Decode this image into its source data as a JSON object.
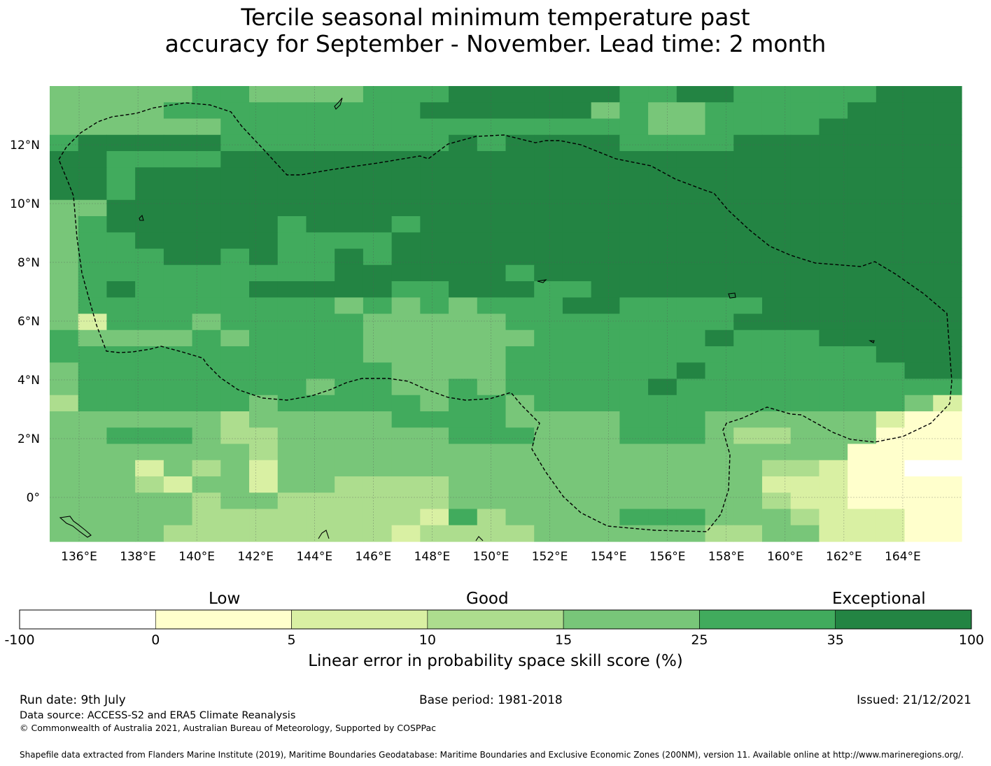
{
  "title": {
    "line1": "Tercile seasonal minimum temperature past",
    "line2": "accuracy for September - November. Lead time: 2 month"
  },
  "map": {
    "lon_range": [
      135,
      166
    ],
    "lat_range": [
      -1.5,
      14
    ],
    "lon_ticks": [
      "136°E",
      "138°E",
      "140°E",
      "142°E",
      "144°E",
      "146°E",
      "148°E",
      "150°E",
      "152°E",
      "154°E",
      "156°E",
      "158°E",
      "160°E",
      "162°E",
      "164°E"
    ],
    "lat_ticks": [
      "12°N",
      "10°N",
      "8°N",
      "6°N",
      "4°N",
      "2°N",
      "0°"
    ],
    "skill_grid_rows_north_to_south": [
      "44444554444555666666556655555666",
      "44445555555556666664544555556666",
      "44444455555555555555544555566666",
      "56666655555555656666555566666666",
      "66555566666666666666666666666666",
      "66566666666666666666666666666666",
      "66566666666666666666666666666666",
      "44666666666666666666666666666666",
      "45666666566656666666666666666666",
      "45566666555566666666666666666666",
      "45556656556566666666666666666666",
      "45555555556666665666666666666666",
      "45655556666655666556666666666666",
      "45555555554545455566555556666666",
      "42555455555444445555555566666666",
      "54444545555444444555555655566666",
      "55555555555444445555555555555666",
      "45555555555544445555556555555566",
      "45555555545544545555565555555555",
      "35555554555554554555555555555542",
      "44444434444455554444555444444211",
      "44555433444444555444555433444111",
      "44444443444444444444444444441111",
      "44424342444444444444444443321100",
      "44432442443333444444444442221111",
      "44444344333333444444444443221111",
      "44444333333332534444555444322211",
      "44443333333323333444444334422211"
    ],
    "legend_key": {
      "0": "-100 to 0",
      "1": "0 to 5",
      "2": "5 to 10",
      "3": "10 to 15",
      "4": "15 to 25",
      "5": "25 to 35",
      "6": "35 to 100"
    }
  },
  "colorbar": {
    "category_labels": [
      "Low",
      "Good",
      "Exceptional"
    ],
    "ticks": [
      "-100",
      "0",
      "5",
      "10",
      "15",
      "25",
      "35",
      "100"
    ],
    "colors": [
      "#ffffff",
      "#ffffcc",
      "#d9f0a3",
      "#addd8e",
      "#78c679",
      "#41ab5d",
      "#238443"
    ],
    "label": "Linear error in probability space skill score (%)"
  },
  "footer": {
    "run_date": "Run date: 9th July",
    "base_period": "Base period: 1981-2018",
    "issued": "Issued: 21/12/2021",
    "data_source": "Data source: ACCESS-S2 and ERA5 Climate Reanalysis",
    "copyright": "© Commonwealth of Australia 2021, Australian Bureau of Meteorology, Supported by COSPPac",
    "shapefile": "Shapefile data extracted from Flanders Marine Institute (2019), Maritime Boundaries Geodatabase: Maritime Boundaries and Exclusive Economic Zones (200NM), version 11. Available online at http://www.marineregions.org/."
  }
}
